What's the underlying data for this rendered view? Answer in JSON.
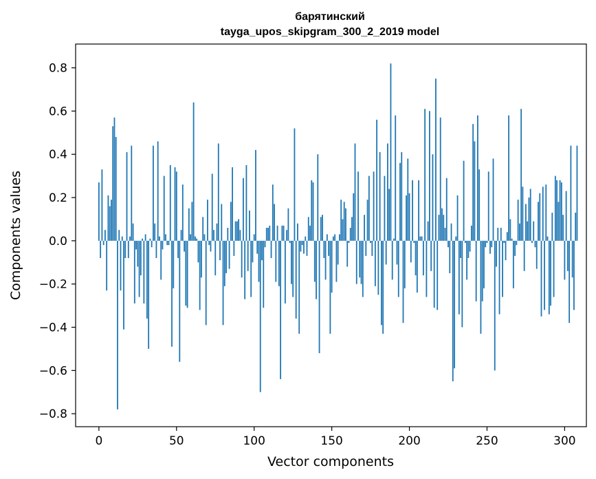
{
  "chart_data": {
    "type": "bar",
    "title": "барятинский",
    "subtitle": "tayga_upos_skipgram_300_2_2019 model",
    "xlabel": "Vector components",
    "ylabel": "Components values",
    "xlim": [
      -15,
      314
    ],
    "ylim": [
      -0.86,
      0.91
    ],
    "xticks": [
      0,
      50,
      100,
      150,
      200,
      250,
      300
    ],
    "xtick_labels": [
      "0",
      "50",
      "100",
      "150",
      "200",
      "250",
      "300"
    ],
    "yticks": [
      -0.8,
      -0.6,
      -0.4,
      -0.2,
      0.0,
      0.2,
      0.4,
      0.6,
      0.8
    ],
    "ytick_labels": [
      "−0.8",
      "−0.6",
      "−0.4",
      "−0.2",
      "0.0",
      "0.2",
      "0.4",
      "0.6",
      "0.8"
    ],
    "bar_color": "#1f77b4",
    "grid": false,
    "values": [
      0.27,
      -0.08,
      0.33,
      -0.02,
      0.05,
      -0.23,
      0.21,
      0.16,
      0.19,
      0.53,
      0.57,
      0.48,
      -0.78,
      0.05,
      -0.23,
      0.02,
      -0.41,
      -0.08,
      0.41,
      -0.08,
      0.02,
      0.44,
      0.08,
      -0.29,
      -0.04,
      -0.12,
      -0.26,
      -0.16,
      0.01,
      -0.29,
      0.03,
      -0.36,
      -0.5,
      0.01,
      -0.03,
      0.44,
      0.08,
      -0.08,
      0.46,
      0.02,
      -0.18,
      -0.04,
      0.3,
      0.03,
      -0.02,
      -0.02,
      0.35,
      -0.49,
      -0.22,
      0.34,
      0.32,
      -0.08,
      -0.56,
      0.05,
      0.26,
      -0.05,
      -0.3,
      -0.31,
      0.15,
      0.03,
      0.18,
      0.64,
      0.02,
      0.01,
      -0.1,
      -0.32,
      -0.17,
      0.11,
      0.03,
      -0.39,
      0.19,
      -0.02,
      -0.05,
      0.31,
      0.05,
      -0.16,
      0.08,
      0.45,
      -0.09,
      0.17,
      -0.39,
      -0.21,
      -0.15,
      0.06,
      -0.13,
      0.18,
      0.34,
      -0.07,
      0.09,
      0.09,
      0.1,
      0.05,
      -0.17,
      0.29,
      -0.27,
      0.35,
      -0.14,
      0.14,
      -0.26,
      -0.1,
      0.03,
      0.42,
      -0.06,
      -0.19,
      -0.7,
      -0.09,
      -0.31,
      -0.03,
      0.06,
      0.06,
      0.07,
      -0.08,
      0.26,
      0.17,
      -0.19,
      0.07,
      -0.21,
      -0.64,
      0.07,
      0.07,
      -0.29,
      0.05,
      0.15,
      -0.01,
      -0.2,
      -0.26,
      0.52,
      -0.36,
      0.08,
      -0.43,
      -0.05,
      -0.02,
      -0.06,
      0.02,
      -0.07,
      0.11,
      0.07,
      0.28,
      0.27,
      -0.19,
      -0.27,
      0.4,
      -0.52,
      0.11,
      0.12,
      -0.08,
      -0.18,
      0.03,
      -0.07,
      -0.43,
      -0.24,
      0.02,
      0.03,
      -0.19,
      -0.11,
      0.03,
      0.19,
      0.1,
      0.18,
      0.15,
      -0.12,
      -0.01,
      0.06,
      0.11,
      0.22,
      0.45,
      -0.2,
      0.32,
      -0.17,
      -0.2,
      -0.26,
      0.12,
      -0.07,
      0.19,
      0.3,
      -0.01,
      -0.07,
      0.32,
      -0.21,
      0.56,
      -0.25,
      0.41,
      -0.39,
      -0.43,
      0.3,
      -0.11,
      0.45,
      0.24,
      0.82,
      -0.18,
      0.01,
      0.58,
      -0.11,
      -0.26,
      0.36,
      0.41,
      -0.38,
      -0.22,
      0.21,
      0.38,
      0.22,
      -0.1,
      0.28,
      -0.01,
      -0.16,
      -0.24,
      0.28,
      0.02,
      0.02,
      -0.16,
      0.61,
      -0.26,
      0.09,
      0.6,
      -0.14,
      0.4,
      -0.31,
      0.75,
      -0.32,
      0.12,
      0.57,
      0.15,
      0.12,
      0.06,
      0.29,
      -0.03,
      -0.15,
      0.08,
      -0.65,
      -0.59,
      0.02,
      0.21,
      -0.34,
      -0.08,
      -0.4,
      0.37,
      -0.01,
      -0.18,
      -0.08,
      -0.05,
      0.07,
      0.54,
      0.46,
      -0.28,
      0.58,
      0.33,
      -0.43,
      -0.28,
      -0.22,
      -0.03,
      -0.01,
      0.32,
      -0.06,
      -0.03,
      0.38,
      -0.6,
      -0.12,
      0.06,
      -0.34,
      0.06,
      -0.26,
      -0.01,
      -0.09,
      0.04,
      0.58,
      0.1,
      0.01,
      -0.22,
      -0.07,
      -0.02,
      0.19,
      0.08,
      0.61,
      0.25,
      -0.14,
      0.17,
      0.09,
      0.2,
      0.24,
      -0.01,
      0.09,
      -0.03,
      -0.13,
      0.18,
      0.22,
      -0.35,
      0.25,
      -0.32,
      0.26,
      0.02,
      -0.34,
      -0.3,
      0.13,
      -0.26,
      0.3,
      0.28,
      0.18,
      0.28,
      0.27,
      0.12,
      -0.18,
      0.23,
      -0.14,
      -0.38,
      0.44,
      -0.17,
      -0.32,
      0.13,
      0.44
    ]
  }
}
